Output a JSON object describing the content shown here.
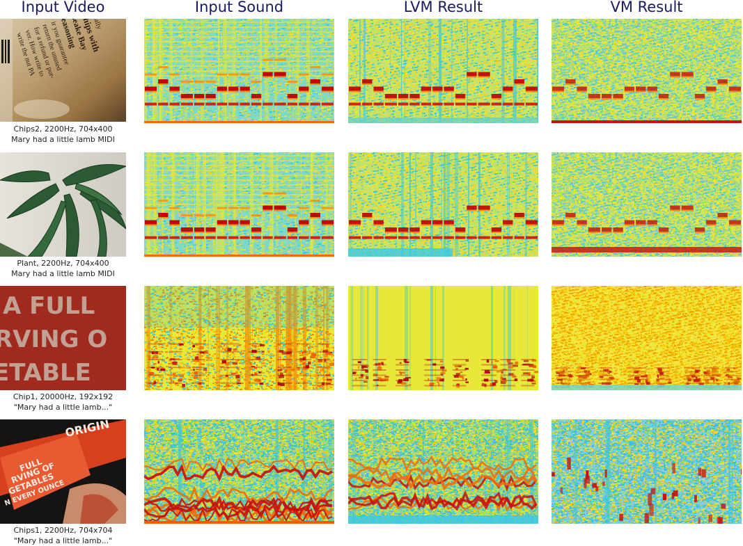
{
  "columns": {
    "input_video": "Input Video",
    "input_sound": "Input Sound",
    "lvm_result": "LVM Result",
    "vm_result": "VM Result"
  },
  "rows": [
    {
      "caption_line1": "Chips2, 2200Hz, 704x400",
      "caption_line2": "Mary had a little lamb MIDI",
      "thumb_text": [
        "tionally",
        "Chips with",
        "peake Bay",
        "easoning",
        "ir you guarantee",
        "return the unused",
        "for a refund or pur-",
        "ver. How write to",
        "write the nut PA"
      ]
    },
    {
      "caption_line1": "Plant, 2200Hz, 704x400",
      "caption_line2": "Mary had a little lamb MIDI",
      "thumb_text": []
    },
    {
      "caption_line1": "Chip1, 20000Hz, 192x192",
      "caption_line2": "\"Mary had a little lamb...\"",
      "thumb_text": [
        "A FULL",
        "RVING O",
        "ETABLE"
      ]
    },
    {
      "caption_line1": "Chips1, 2200Hz, 704x704",
      "caption_line2": "\"Mary had a little lamb...\"",
      "thumb_text": [
        "ORIGIN",
        "FULL",
        "RVING OF",
        "GETABLES",
        "N EVERY OUNCE"
      ]
    }
  ],
  "colors": {
    "spectrogram_background": "#e8e838",
    "spectrogram_low": "#3fc7d8",
    "spectrogram_high": "#b0000c",
    "header_text": "#1a1a5e"
  }
}
